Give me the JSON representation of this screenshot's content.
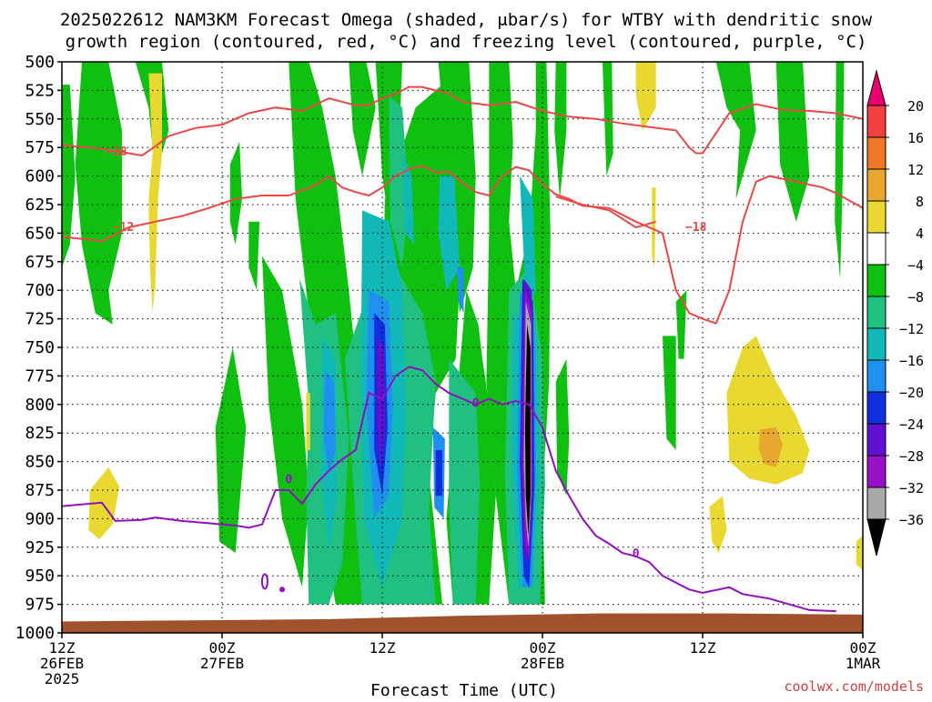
{
  "chart_data": {
    "type": "heatmap",
    "title_line1": "2025022612 NAM3KM Forecast Omega (shaded, μbar/s) for WTBY with dendritic snow",
    "title_line2": "growth region (contoured, red, °C) and freezing level (contoured, purple, °C)",
    "xlabel": "Forecast Time (UTC)",
    "credit": "coolwx.com/models",
    "x_ticks": [
      {
        "hour": 0,
        "lines": [
          "12Z",
          "26FEB",
          "2025"
        ]
      },
      {
        "hour": 12,
        "lines": [
          "00Z",
          "27FEB"
        ]
      },
      {
        "hour": 24,
        "lines": [
          "12Z"
        ]
      },
      {
        "hour": 36,
        "lines": [
          "00Z",
          "28FEB"
        ]
      },
      {
        "hour": 48,
        "lines": [
          "12Z"
        ]
      },
      {
        "hour": 60,
        "lines": [
          "00Z",
          "1MAR"
        ]
      }
    ],
    "x_range_hours": [
      0,
      60
    ],
    "y_range_hpa": [
      500,
      1000
    ],
    "y_ticks": [
      500,
      525,
      550,
      575,
      600,
      625,
      650,
      675,
      700,
      725,
      750,
      775,
      800,
      825,
      850,
      875,
      900,
      925,
      950,
      975,
      1000
    ],
    "grid": true,
    "colorbar": {
      "levels": [
        "20",
        "16",
        "12",
        "8",
        "4",
        "−4",
        "−8",
        "−12",
        "−16",
        "−20",
        "−24",
        "−28",
        "−32",
        "−36"
      ],
      "colors": [
        "#e8006e",
        "#f04040",
        "#f07828",
        "#e8a830",
        "#e8d830",
        "#ffffff",
        "#10c010",
        "#20c080",
        "#10b8b8",
        "#2090f0",
        "#1030e0",
        "#6010d0",
        "#9810c8",
        "#a8a8a8",
        "#000000"
      ]
    },
    "contours_red": [
      {
        "label": "−18",
        "label_at": [
          4.1,
          578
        ],
        "points": [
          [
            0,
            573
          ],
          [
            3,
            576
          ],
          [
            5,
            580
          ],
          [
            6,
            582
          ],
          [
            7,
            574
          ],
          [
            8,
            565
          ],
          [
            10,
            558
          ],
          [
            12,
            555
          ],
          [
            14,
            545
          ],
          [
            16,
            540
          ],
          [
            18,
            543
          ],
          [
            20,
            532
          ],
          [
            22,
            538
          ],
          [
            23,
            538
          ],
          [
            24,
            532
          ],
          [
            25,
            528
          ],
          [
            26,
            522
          ],
          [
            27,
            522
          ],
          [
            29,
            528
          ],
          [
            30,
            535
          ],
          [
            32,
            538
          ],
          [
            34,
            535
          ],
          [
            36,
            543
          ],
          [
            38,
            548
          ],
          [
            40,
            550
          ],
          [
            42,
            554
          ],
          [
            44,
            557
          ],
          [
            46,
            560
          ],
          [
            47,
            575
          ],
          [
            47.5,
            580
          ],
          [
            48,
            580
          ],
          [
            50,
            545
          ],
          [
            52,
            537
          ],
          [
            54,
            542
          ],
          [
            56,
            543
          ],
          [
            58,
            545
          ],
          [
            60,
            550
          ]
        ]
      },
      {
        "label": "−12",
        "label_at": [
          4.6,
          644
        ],
        "points": [
          [
            0,
            653
          ],
          [
            3,
            657
          ],
          [
            5,
            645
          ],
          [
            7,
            640
          ],
          [
            9,
            635
          ],
          [
            11,
            628
          ],
          [
            13,
            620
          ],
          [
            15,
            617
          ],
          [
            17,
            617
          ],
          [
            19,
            608
          ],
          [
            20,
            600
          ],
          [
            21,
            610
          ],
          [
            22,
            614
          ],
          [
            23,
            617
          ],
          [
            24,
            610
          ],
          [
            25,
            600
          ],
          [
            26,
            594
          ],
          [
            27,
            591
          ],
          [
            28,
            597
          ],
          [
            29,
            596
          ],
          [
            30,
            606
          ],
          [
            31,
            614
          ],
          [
            32,
            617
          ],
          [
            33,
            600
          ],
          [
            34,
            592
          ],
          [
            35,
            595
          ],
          [
            36,
            607
          ],
          [
            37,
            616
          ],
          [
            38,
            620
          ],
          [
            39,
            626
          ],
          [
            41,
            628
          ],
          [
            43,
            640
          ],
          [
            45,
            650
          ],
          [
            46,
            700
          ],
          [
            47,
            720
          ],
          [
            48,
            725
          ],
          [
            49,
            729
          ],
          [
            50,
            700
          ],
          [
            51,
            640
          ],
          [
            52,
            605
          ],
          [
            53,
            600
          ],
          [
            55,
            605
          ],
          [
            57,
            610
          ],
          [
            58,
            615
          ],
          [
            60,
            628
          ]
        ]
      },
      {
        "label": "−18",
        "label_at": [
          47.5,
          644
        ],
        "points": [
          [
            37,
            618
          ],
          [
            39,
            625
          ],
          [
            41,
            630
          ],
          [
            43,
            645
          ],
          [
            44.5,
            640
          ]
        ]
      }
    ],
    "contours_purple": [
      {
        "label": "0",
        "label_at": [
          17,
          865
        ],
        "points": [
          [
            0,
            889
          ],
          [
            3,
            886
          ],
          [
            4,
            902
          ],
          [
            6,
            901
          ],
          [
            7,
            899
          ],
          [
            9,
            902
          ],
          [
            11,
            904
          ],
          [
            13,
            906
          ],
          [
            14,
            908
          ],
          [
            15,
            905
          ],
          [
            16,
            875
          ],
          [
            17,
            875
          ],
          [
            18,
            887
          ],
          [
            19,
            870
          ],
          [
            20,
            858
          ],
          [
            21,
            848
          ],
          [
            22,
            840
          ],
          [
            23,
            790
          ],
          [
            24,
            795
          ],
          [
            25,
            775
          ],
          [
            26,
            767
          ],
          [
            27,
            770
          ],
          [
            28,
            782
          ],
          [
            29,
            790
          ],
          [
            30,
            795
          ],
          [
            31,
            800
          ],
          [
            32,
            795
          ],
          [
            33,
            800
          ],
          [
            34,
            797
          ],
          [
            35,
            800
          ],
          [
            36,
            820
          ],
          [
            37,
            858
          ],
          [
            38,
            880
          ],
          [
            39,
            900
          ],
          [
            40,
            915
          ],
          [
            41,
            922
          ],
          [
            42,
            930
          ],
          [
            43,
            933
          ],
          [
            44,
            938
          ],
          [
            45,
            950
          ],
          [
            47,
            962
          ],
          [
            48,
            965
          ],
          [
            50,
            960
          ],
          [
            51,
            966
          ],
          [
            53,
            970
          ],
          [
            56,
            980
          ],
          [
            58,
            981
          ]
        ]
      },
      {
        "label": "0",
        "label_at": [
          31,
          798
        ],
        "points": []
      },
      {
        "label": "0",
        "label_at": [
          43,
          930
        ],
        "points": []
      }
    ]
  }
}
